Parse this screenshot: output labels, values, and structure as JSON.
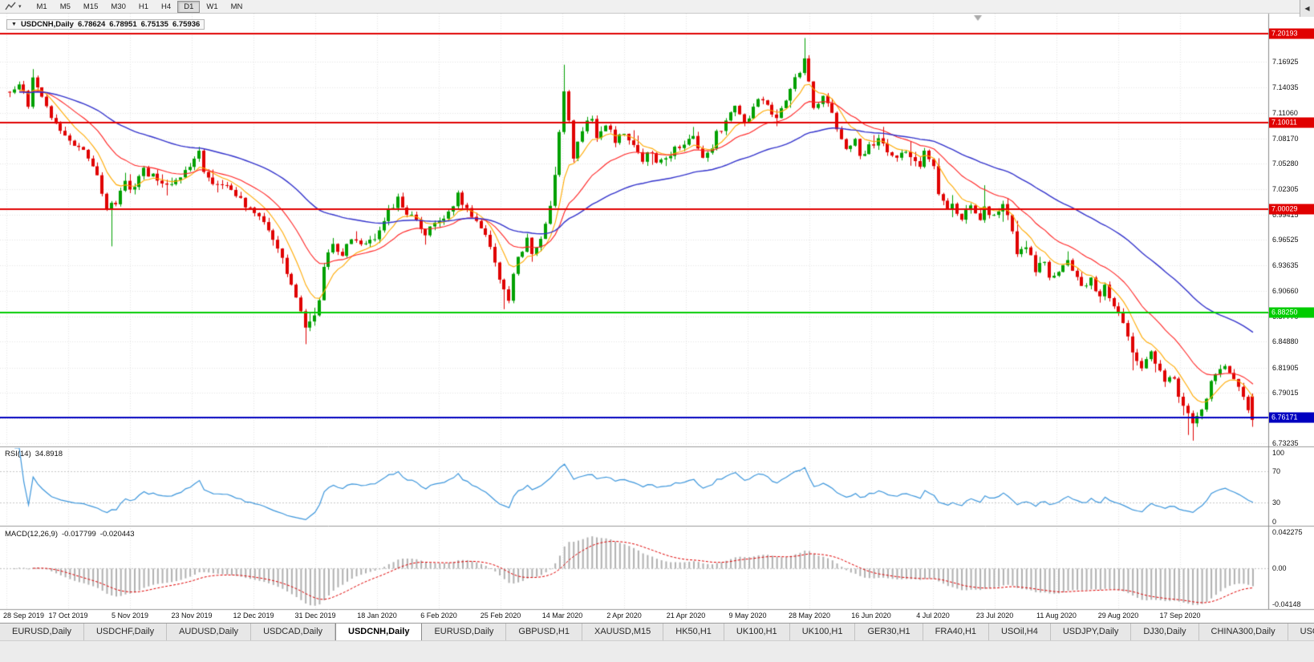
{
  "toolbar": {
    "timeframes": [
      "M1",
      "M5",
      "M15",
      "M30",
      "H1",
      "H4",
      "D1",
      "W1",
      "MN"
    ],
    "active": "D1",
    "chart_tool_caret": "▾"
  },
  "chart_header": {
    "collapse_icon": "▼",
    "symbol": "USDCNH,Daily",
    "open": "6.78624",
    "high": "6.78951",
    "low": "6.75135",
    "close": "6.75936"
  },
  "price_scale": {
    "ticks": [
      "7.16925",
      "7.14035",
      "7.11060",
      "7.08170",
      "7.05280",
      "7.02305",
      "6.99415",
      "6.96525",
      "6.93635",
      "6.90660",
      "6.87770",
      "6.84880",
      "6.81905",
      "6.79015",
      "6.76125",
      "6.73235"
    ]
  },
  "time_scale": {
    "labels": [
      "28 Sep 2019",
      "17 Oct 2019",
      "5 Nov 2019",
      "23 Nov 2019",
      "12 Dec 2019",
      "31 Dec 2019",
      "18 Jan 2020",
      "6 Feb 2020",
      "25 Feb 2020",
      "14 Mar 2020",
      "2 Apr 2020",
      "21 Apr 2020",
      "9 May 2020",
      "28 May 2020",
      "16 Jun 2020",
      "4 Jul 2020",
      "23 Jul 2020",
      "11 Aug 2020",
      "29 Aug 2020",
      "17 Sep 2020"
    ]
  },
  "tabbar": {
    "scroll_left_icon": "◀",
    "tabs": [
      {
        "label": "EURUSD,Daily"
      },
      {
        "label": "USDCHF,Daily"
      },
      {
        "label": "AUDUSD,Daily"
      },
      {
        "label": "USDCAD,Daily"
      },
      {
        "label": "USDCNH,Daily",
        "active": true
      },
      {
        "label": "EURUSD,Daily"
      },
      {
        "label": "GBPUSD,H1"
      },
      {
        "label": "XAUUSD,M15"
      },
      {
        "label": "HK50,H1"
      },
      {
        "label": "UK100,H1"
      },
      {
        "label": "UK100,H1"
      },
      {
        "label": "GER30,H1"
      },
      {
        "label": "FRA40,H1"
      },
      {
        "label": "USOil,H4"
      },
      {
        "label": "USDJPY,Daily"
      },
      {
        "label": "DJ30,Daily"
      },
      {
        "label": "CHINA300,Daily"
      },
      {
        "label": "USOil,H"
      }
    ]
  },
  "colors": {
    "candle_up": "#00A000",
    "candle_down": "#E00000",
    "grid": "#e6e6e6",
    "panel_separator": "#9a9a9a",
    "level_red": "#E00000",
    "level_green": "#00CC00",
    "level_blue": "#0000C0"
  },
  "chart_data": {
    "type": "candlestick",
    "symbol": "USDCNH",
    "timeframe": "Daily",
    "title": "USDCNH,Daily 6.78624 6.78951 6.75135 6.75936",
    "x_range_dates": [
      "28 Sep 2019",
      "17 Sep 2020"
    ],
    "y_view": [
      6.7289,
      7.2245
    ],
    "candle_count": 270,
    "anchors": [
      [
        0,
        7.132
      ],
      [
        2,
        7.146
      ],
      [
        4,
        7.118
      ],
      [
        5,
        7.15
      ],
      [
        7,
        7.128
      ],
      [
        9,
        7.108
      ],
      [
        11,
        7.094
      ],
      [
        13,
        7.082
      ],
      [
        15,
        7.07
      ],
      [
        17,
        7.06
      ],
      [
        19,
        7.038
      ],
      [
        21,
        7.004
      ],
      [
        23,
        7.01
      ],
      [
        25,
        7.03
      ],
      [
        27,
        7.024
      ],
      [
        29,
        7.046
      ],
      [
        31,
        7.038
      ],
      [
        33,
        7.034
      ],
      [
        35,
        7.028
      ],
      [
        37,
        7.036
      ],
      [
        39,
        7.052
      ],
      [
        41,
        7.066
      ],
      [
        42,
        7.04
      ],
      [
        44,
        7.028
      ],
      [
        46,
        7.031
      ],
      [
        48,
        7.02
      ],
      [
        50,
        7.012
      ],
      [
        53,
        6.996
      ],
      [
        55,
        6.982
      ],
      [
        57,
        6.964
      ],
      [
        59,
        6.944
      ],
      [
        61,
        6.912
      ],
      [
        63,
        6.88
      ],
      [
        64,
        6.863
      ],
      [
        65,
        6.872
      ],
      [
        66,
        6.882
      ],
      [
        67,
        6.898
      ],
      [
        68,
        6.936
      ],
      [
        70,
        6.962
      ],
      [
        72,
        6.95
      ],
      [
        74,
        6.97
      ],
      [
        76,
        6.958
      ],
      [
        78,
        6.963
      ],
      [
        80,
        6.976
      ],
      [
        82,
        7.0
      ],
      [
        84,
        7.012
      ],
      [
        86,
        6.998
      ],
      [
        88,
        6.986
      ],
      [
        90,
        6.973
      ],
      [
        93,
        6.986
      ],
      [
        95,
        7.0
      ],
      [
        97,
        7.016
      ],
      [
        99,
        7.002
      ],
      [
        101,
        6.986
      ],
      [
        103,
        6.972
      ],
      [
        105,
        6.936
      ],
      [
        107,
        6.912
      ],
      [
        108,
        6.898
      ],
      [
        109,
        6.93
      ],
      [
        111,
        6.956
      ],
      [
        112,
        6.968
      ],
      [
        113,
        6.946
      ],
      [
        115,
        6.968
      ],
      [
        117,
        7.006
      ],
      [
        118,
        7.04
      ],
      [
        119,
        7.092
      ],
      [
        120,
        7.136
      ],
      [
        121,
        7.102
      ],
      [
        122,
        7.062
      ],
      [
        124,
        7.088
      ],
      [
        126,
        7.108
      ],
      [
        127,
        7.082
      ],
      [
        129,
        7.098
      ],
      [
        131,
        7.078
      ],
      [
        133,
        7.09
      ],
      [
        135,
        7.072
      ],
      [
        137,
        7.058
      ],
      [
        139,
        7.068
      ],
      [
        140,
        7.05
      ],
      [
        142,
        7.062
      ],
      [
        144,
        7.068
      ],
      [
        146,
        7.076
      ],
      [
        148,
        7.081
      ],
      [
        150,
        7.06
      ],
      [
        152,
        7.068
      ],
      [
        153,
        7.088
      ],
      [
        155,
        7.098
      ],
      [
        157,
        7.118
      ],
      [
        159,
        7.1
      ],
      [
        160,
        7.108
      ],
      [
        162,
        7.128
      ],
      [
        164,
        7.118
      ],
      [
        166,
        7.102
      ],
      [
        167,
        7.118
      ],
      [
        169,
        7.138
      ],
      [
        171,
        7.158
      ],
      [
        172,
        7.172
      ],
      [
        173,
        7.148
      ],
      [
        174,
        7.118
      ],
      [
        176,
        7.128
      ],
      [
        178,
        7.108
      ],
      [
        179,
        7.088
      ],
      [
        181,
        7.068
      ],
      [
        183,
        7.078
      ],
      [
        184,
        7.058
      ],
      [
        186,
        7.072
      ],
      [
        188,
        7.078
      ],
      [
        190,
        7.068
      ],
      [
        191,
        7.058
      ],
      [
        193,
        7.068
      ],
      [
        195,
        7.062
      ],
      [
        197,
        7.048
      ],
      [
        198,
        7.068
      ],
      [
        200,
        7.048
      ],
      [
        201,
        7.022
      ],
      [
        203,
        7.0
      ],
      [
        204,
        7.006
      ],
      [
        206,
        6.99
      ],
      [
        208,
        7.004
      ],
      [
        210,
        6.986
      ],
      [
        211,
        7.0
      ],
      [
        213,
        6.99
      ],
      [
        215,
        7.004
      ],
      [
        217,
        6.976
      ],
      [
        218,
        6.952
      ],
      [
        220,
        6.96
      ],
      [
        222,
        6.932
      ],
      [
        224,
        6.944
      ],
      [
        225,
        6.92
      ],
      [
        227,
        6.93
      ],
      [
        229,
        6.94
      ],
      [
        231,
        6.92
      ],
      [
        232,
        6.91
      ],
      [
        234,
        6.92
      ],
      [
        236,
        6.9
      ],
      [
        237,
        6.91
      ],
      [
        239,
        6.892
      ],
      [
        240,
        6.88
      ],
      [
        242,
        6.858
      ],
      [
        243,
        6.84
      ],
      [
        245,
        6.82
      ],
      [
        247,
        6.836
      ],
      [
        249,
        6.816
      ],
      [
        250,
        6.8
      ],
      [
        252,
        6.81
      ],
      [
        253,
        6.79
      ],
      [
        255,
        6.768
      ],
      [
        256,
        6.755
      ],
      [
        258,
        6.772
      ],
      [
        260,
        6.8
      ],
      [
        262,
        6.815
      ],
      [
        263,
        6.824
      ],
      [
        265,
        6.81
      ],
      [
        267,
        6.786
      ],
      [
        269,
        6.76
      ]
    ],
    "wick_overrides": {
      "5": {
        "h": 7.161
      },
      "22": {
        "l": 6.958
      },
      "41": {
        "h": 7.072
      },
      "64": {
        "l": 6.846
      },
      "97": {
        "h": 7.022
      },
      "107": {
        "l": 6.886
      },
      "120": {
        "h": 7.166
      },
      "172": {
        "h": 7.1965
      },
      "211": {
        "h": 7.028
      },
      "243": {
        "l": 6.816
      },
      "255": {
        "l": 6.742
      },
      "256": {
        "l": 6.7355
      }
    },
    "last_candle": {
      "o": 6.78624,
      "h": 6.78951,
      "l": 6.75135,
      "c": 6.75936
    },
    "overlays": {
      "horizontal_lines": [
        {
          "label": "7.20193",
          "price": 7.20193,
          "color": "#E00000"
        },
        {
          "label": "7.10011",
          "price": 7.10011,
          "color": "#E00000"
        },
        {
          "label": "7.00029",
          "price": 7.00029,
          "color": "#E00000"
        },
        {
          "label": "6.88250",
          "price": 6.8825,
          "color": "#00CC00"
        },
        {
          "label": "6.76171",
          "price": 6.76171,
          "color": "#0000C0"
        }
      ],
      "moving_averages": [
        {
          "period": 8,
          "color": "#FFAA00",
          "width": 1.1
        },
        {
          "period": 20,
          "color": "#FF2222",
          "width": 1.1
        },
        {
          "period": 55,
          "color": "#3333CC",
          "width": 1.4
        }
      ]
    },
    "rsi": {
      "label": "RSI(14)",
      "value": "34.8918",
      "period": 14,
      "levels": [
        70,
        30
      ],
      "scale": [
        "100",
        "70",
        "30",
        "0"
      ],
      "color": "#3C96DC"
    },
    "macd": {
      "label": "MACD(12,26,9)",
      "value_macd": "-0.017799",
      "value_signal": "-0.020443",
      "params": [
        12,
        26,
        9
      ],
      "scale": [
        "0.042275",
        "0.00",
        "-0.04148"
      ],
      "scale_values": [
        0.042275,
        0.0,
        -0.04148
      ],
      "histogram_color": "#B0B0B0",
      "signal_color": "#E00000"
    }
  }
}
